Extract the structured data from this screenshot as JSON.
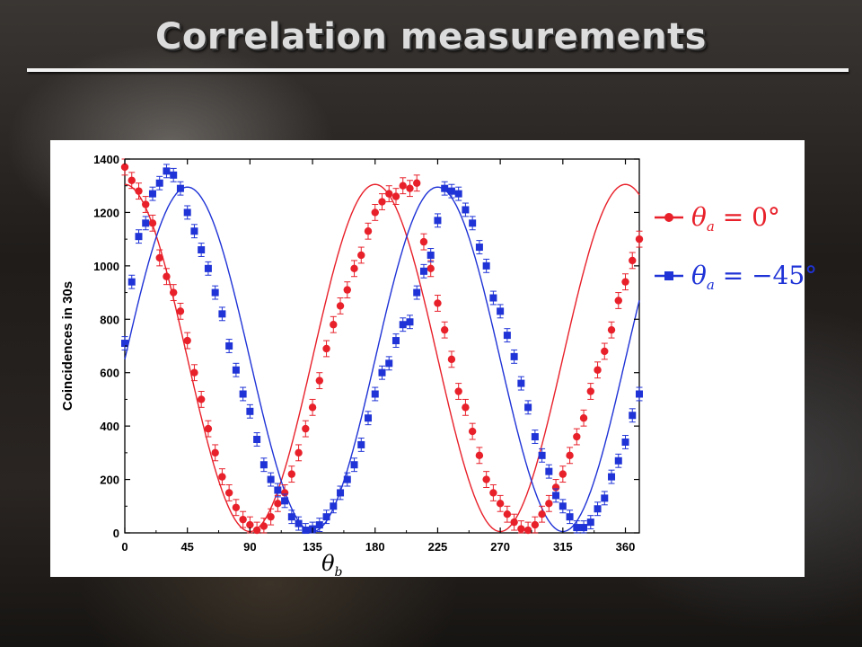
{
  "slide": {
    "title": "Correlation measurements"
  },
  "chart_data": {
    "type": "scatter",
    "title": "",
    "xlabel": "θ",
    "xlabel_sub": "b",
    "ylabel": "Coincidences in 30s",
    "xlim": [
      0,
      370
    ],
    "ylim": [
      0,
      1400
    ],
    "xticks": [
      0,
      45,
      90,
      135,
      180,
      225,
      270,
      315,
      360
    ],
    "yticks": [
      0,
      200,
      400,
      600,
      800,
      1000,
      1200,
      1400
    ],
    "grid": false,
    "legend_position": "right",
    "series": [
      {
        "name": "θ_a = 0°",
        "legend_main": "θ",
        "legend_sub": "a",
        "legend_rest": " = 0°",
        "color": "#e8202a",
        "marker": "circle",
        "fit": {
          "offset": 655,
          "amplitude": 650,
          "phase_deg": 0
        },
        "x": [
          0,
          5,
          10,
          15,
          20,
          25,
          30,
          35,
          40,
          45,
          50,
          55,
          60,
          65,
          70,
          75,
          80,
          85,
          90,
          95,
          100,
          105,
          110,
          115,
          120,
          125,
          130,
          135,
          140,
          145,
          150,
          155,
          160,
          165,
          170,
          175,
          180,
          185,
          190,
          195,
          200,
          205,
          210,
          215,
          220,
          225,
          230,
          235,
          240,
          245,
          250,
          255,
          260,
          265,
          270,
          275,
          280,
          285,
          290,
          295,
          300,
          305,
          310,
          315,
          320,
          325,
          330,
          335,
          340,
          345,
          350,
          355,
          360,
          365,
          370
        ],
        "y": [
          1370,
          1320,
          1280,
          1230,
          1160,
          1030,
          960,
          900,
          830,
          720,
          600,
          500,
          390,
          300,
          210,
          150,
          95,
          50,
          30,
          10,
          25,
          60,
          110,
          150,
          220,
          300,
          390,
          470,
          570,
          690,
          780,
          850,
          910,
          990,
          1040,
          1130,
          1200,
          1240,
          1270,
          1260,
          1300,
          1290,
          1310,
          1090,
          990,
          860,
          760,
          650,
          530,
          470,
          380,
          290,
          200,
          150,
          110,
          70,
          40,
          15,
          10,
          30,
          70,
          110,
          170,
          220,
          290,
          360,
          430,
          530,
          610,
          680,
          760,
          870,
          940,
          1020,
          1100
        ],
        "err": 30
      },
      {
        "name": "θ_a = −45°",
        "legend_main": "θ",
        "legend_sub": "a",
        "legend_rest": " = −45°",
        "color": "#1f33d6",
        "marker": "square",
        "fit": {
          "offset": 650,
          "amplitude": 645,
          "phase_deg": -45
        },
        "x": [
          0,
          5,
          10,
          15,
          20,
          25,
          30,
          35,
          40,
          45,
          50,
          55,
          60,
          65,
          70,
          75,
          80,
          85,
          90,
          95,
          100,
          105,
          110,
          115,
          120,
          125,
          130,
          135,
          140,
          145,
          150,
          155,
          160,
          165,
          170,
          175,
          180,
          185,
          190,
          195,
          200,
          205,
          210,
          215,
          220,
          225,
          230,
          235,
          240,
          245,
          250,
          255,
          260,
          265,
          270,
          275,
          280,
          285,
          290,
          295,
          300,
          305,
          310,
          315,
          320,
          325,
          330,
          335,
          340,
          345,
          350,
          355,
          360,
          365,
          370
        ],
        "y": [
          710,
          940,
          1110,
          1160,
          1270,
          1310,
          1355,
          1340,
          1290,
          1200,
          1130,
          1060,
          990,
          900,
          820,
          700,
          610,
          520,
          455,
          350,
          255,
          200,
          160,
          120,
          60,
          35,
          10,
          15,
          30,
          60,
          100,
          150,
          200,
          255,
          330,
          430,
          520,
          600,
          635,
          720,
          780,
          790,
          900,
          980,
          1040,
          1170,
          1290,
          1280,
          1270,
          1210,
          1160,
          1070,
          1000,
          880,
          830,
          740,
          660,
          560,
          470,
          360,
          290,
          230,
          140,
          100,
          60,
          20,
          20,
          40,
          90,
          130,
          210,
          270,
          340,
          440,
          520
        ]
      }
    ]
  }
}
